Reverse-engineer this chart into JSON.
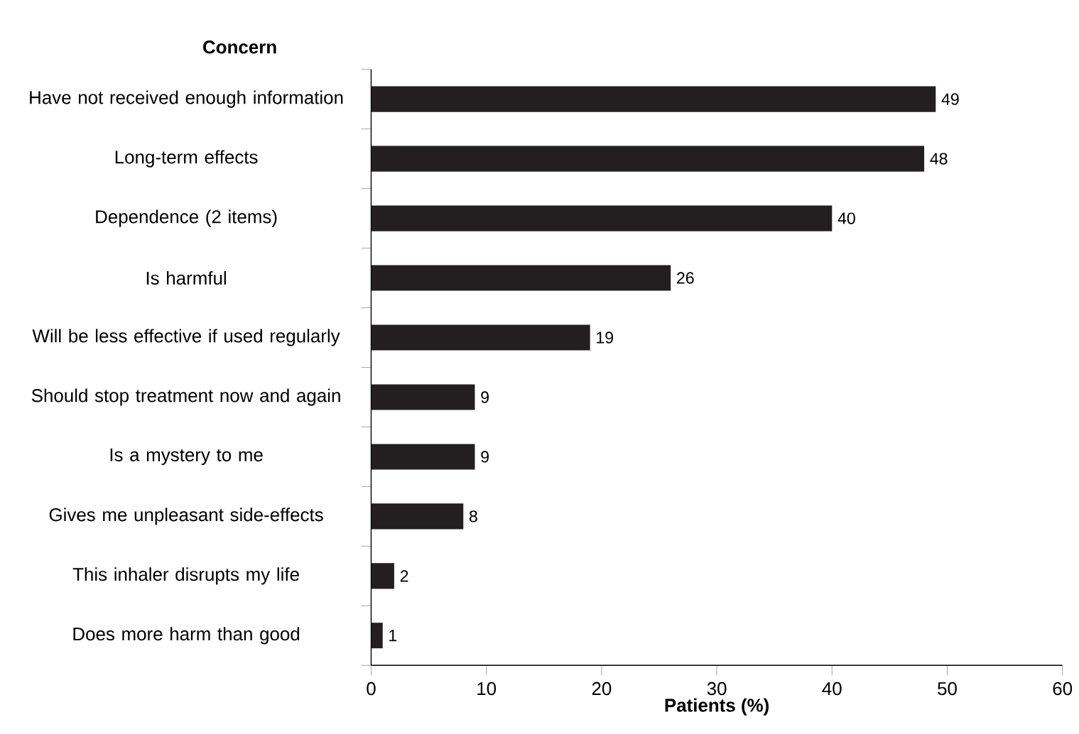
{
  "chart_data": {
    "type": "bar",
    "orientation": "horizontal",
    "ylabel": "Concern",
    "xlabel": "Patients (%)",
    "categories": [
      "Have not received enough information",
      "Long-term effects",
      "Dependence (2 items)",
      "Is harmful",
      "Will be less effective if used regularly",
      "Should stop treatment now and again",
      "Is a mystery to me",
      "Gives me unpleasant side-effects",
      "This inhaler disrupts my life",
      "Does more harm than good"
    ],
    "values": [
      49,
      48,
      40,
      26,
      19,
      9,
      9,
      8,
      2,
      1
    ],
    "color": "#231f20",
    "xlim": [
      0,
      60
    ],
    "xticks": [
      0,
      10,
      20,
      30,
      40,
      50,
      60
    ],
    "data_labels": true,
    "grid": false
  }
}
